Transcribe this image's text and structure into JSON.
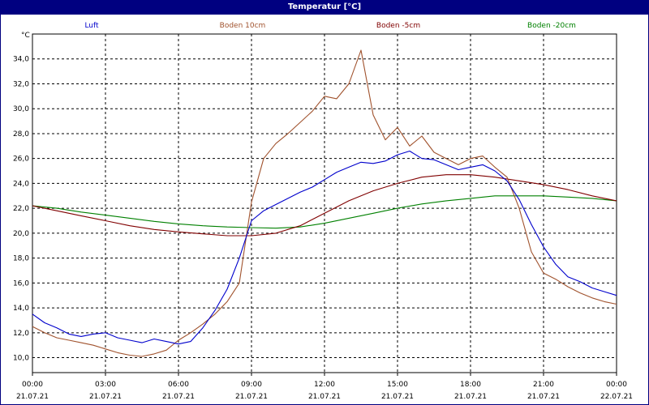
{
  "chart_data": {
    "type": "line",
    "title": "Temperatur [°C]",
    "ylabel": "°C",
    "xlabel": "",
    "ylim": [
      8.8,
      36.0
    ],
    "xlim": [
      0,
      24
    ],
    "grid": true,
    "legend_position": "top",
    "y_ticks": [
      "10,0",
      "12,0",
      "14,0",
      "16,0",
      "18,0",
      "20,0",
      "22,0",
      "24,0",
      "26,0",
      "28,0",
      "30,0",
      "32,0",
      "34,0"
    ],
    "y_tick_values": [
      10,
      12,
      14,
      16,
      18,
      20,
      22,
      24,
      26,
      28,
      30,
      32,
      34
    ],
    "x_ticks": [
      {
        "time": "00:00",
        "date": "21.07.21"
      },
      {
        "time": "03:00",
        "date": "21.07.21"
      },
      {
        "time": "06:00",
        "date": "21.07.21"
      },
      {
        "time": "09:00",
        "date": "21.07.21"
      },
      {
        "time": "12:00",
        "date": "21.07.21"
      },
      {
        "time": "15:00",
        "date": "21.07.21"
      },
      {
        "time": "18:00",
        "date": "21.07.21"
      },
      {
        "time": "21:00",
        "date": "21.07.21"
      },
      {
        "time": "00:00",
        "date": "22.07.21"
      }
    ],
    "series": [
      {
        "name": "Luft",
        "color": "#0000cc",
        "x": [
          0,
          0.5,
          1,
          1.5,
          2,
          2.5,
          3,
          3.5,
          4,
          4.5,
          5,
          5.5,
          6,
          6.5,
          7,
          7.5,
          8,
          8.5,
          9,
          9.5,
          10,
          10.5,
          11,
          11.5,
          12,
          12.5,
          13,
          13.5,
          14,
          14.5,
          15,
          15.5,
          16,
          16.5,
          17,
          17.5,
          18,
          18.5,
          19,
          19.5,
          20,
          20.5,
          21,
          21.5,
          22,
          22.5,
          23,
          23.5,
          24
        ],
        "values": [
          13.5,
          12.8,
          12.4,
          11.9,
          11.7,
          11.9,
          12.0,
          11.6,
          11.4,
          11.2,
          11.5,
          11.3,
          11.1,
          11.3,
          12.4,
          13.8,
          15.5,
          18.0,
          21.0,
          21.8,
          22.3,
          22.8,
          23.3,
          23.7,
          24.3,
          24.9,
          25.3,
          25.7,
          25.6,
          25.8,
          26.3,
          26.6,
          26.0,
          25.9,
          25.5,
          25.1,
          25.3,
          25.5,
          25.0,
          24.2,
          22.7,
          20.7,
          18.9,
          17.5,
          16.5,
          16.1,
          15.6,
          15.3,
          15.0
        ]
      },
      {
        "name": "Boden 10cm",
        "color": "#a0522d",
        "x": [
          0,
          0.5,
          1,
          1.5,
          2,
          2.5,
          3,
          3.5,
          4,
          4.5,
          5,
          5.5,
          6,
          6.5,
          7,
          7.5,
          8,
          8.5,
          9,
          9.5,
          10,
          10.5,
          11,
          11.5,
          12,
          12.5,
          13,
          13.5,
          14,
          14.5,
          15,
          15.5,
          16,
          16.5,
          17,
          17.5,
          18,
          18.5,
          19,
          19.5,
          20,
          20.5,
          21,
          21.5,
          22,
          22.5,
          23,
          23.5,
          24
        ],
        "values": [
          12.5,
          12.0,
          11.6,
          11.4,
          11.2,
          11.0,
          10.7,
          10.4,
          10.2,
          10.1,
          10.3,
          10.6,
          11.4,
          12.0,
          12.7,
          13.5,
          14.5,
          16.0,
          22.5,
          26.0,
          27.2,
          28.0,
          28.9,
          29.8,
          31.0,
          30.8,
          32.0,
          34.7,
          29.5,
          27.5,
          28.5,
          27.0,
          27.8,
          26.5,
          26.0,
          25.5,
          26.0,
          26.2,
          25.3,
          24.5,
          22.0,
          18.5,
          16.8,
          16.3,
          15.7,
          15.2,
          14.8,
          14.5,
          14.3
        ]
      },
      {
        "name": "Boden -5cm",
        "color": "#800000",
        "x": [
          0,
          1,
          2,
          3,
          4,
          5,
          6,
          7,
          8,
          9,
          10,
          11,
          12,
          13,
          14,
          15,
          16,
          17,
          18,
          19,
          20,
          21,
          22,
          23,
          24
        ],
        "values": [
          22.2,
          21.8,
          21.4,
          21.0,
          20.6,
          20.3,
          20.1,
          19.95,
          19.8,
          19.8,
          20.0,
          20.6,
          21.6,
          22.6,
          23.4,
          24.0,
          24.5,
          24.7,
          24.7,
          24.5,
          24.2,
          23.9,
          23.5,
          23.0,
          22.6
        ]
      },
      {
        "name": "Boden -20cm",
        "color": "#008000",
        "x": [
          0,
          1,
          2,
          3,
          4,
          5,
          6,
          7,
          8,
          9,
          10,
          11,
          12,
          13,
          14,
          15,
          16,
          17,
          18,
          19,
          20,
          21,
          22,
          23,
          24
        ],
        "values": [
          22.2,
          22.0,
          21.7,
          21.45,
          21.2,
          20.95,
          20.75,
          20.6,
          20.5,
          20.45,
          20.4,
          20.5,
          20.8,
          21.2,
          21.6,
          22.0,
          22.35,
          22.6,
          22.8,
          23.0,
          23.0,
          23.0,
          22.9,
          22.8,
          22.6
        ]
      }
    ]
  }
}
